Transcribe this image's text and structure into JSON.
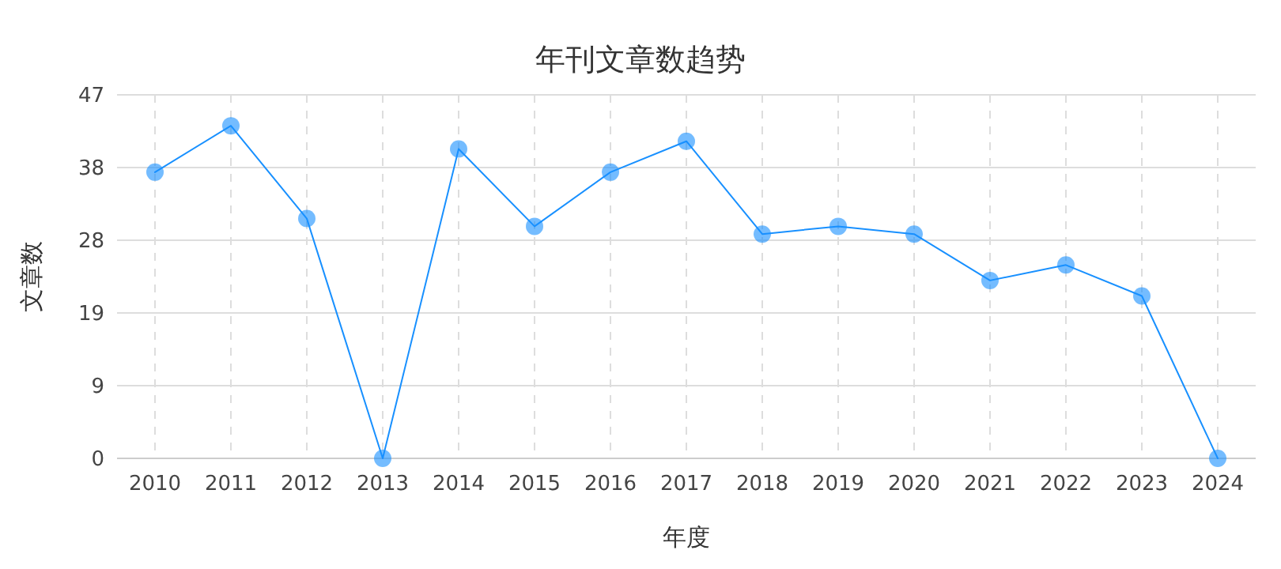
{
  "chart_data": {
    "type": "line",
    "title": "年刊文章数趋势",
    "xlabel": "年度",
    "ylabel": "文章数",
    "categories": [
      "2010",
      "2011",
      "2012",
      "2013",
      "2014",
      "2015",
      "2016",
      "2017",
      "2018",
      "2019",
      "2020",
      "2021",
      "2022",
      "2023",
      "2024"
    ],
    "series": [
      {
        "color": "#1890ff",
        "values": [
          37,
          43,
          31,
          0,
          40,
          30,
          37,
          41,
          29,
          30,
          29,
          23,
          25,
          21,
          0
        ]
      }
    ],
    "ylim": [
      0,
      47
    ],
    "yticks": [
      0,
      {
        "value": 9.4,
        "label": "9"
      },
      {
        "value": 18.8,
        "label": "19"
      },
      {
        "value": 28.2,
        "label": "28"
      },
      {
        "value": 37.6,
        "label": "38"
      },
      47
    ],
    "grid": true,
    "marker": "circle",
    "line_style": "solid"
  }
}
